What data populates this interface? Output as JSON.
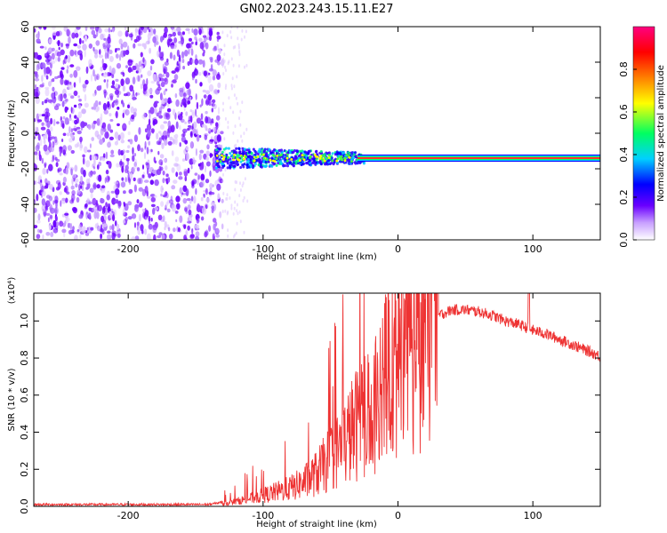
{
  "title": "GN02.2023.243.15.11.E27",
  "chart_data": [
    {
      "type": "heatmap",
      "xlabel": "Height of straight line (km)",
      "ylabel": "Frequency (Hz)",
      "xlim": [
        -270,
        150
      ],
      "ylim": [
        -60,
        60
      ],
      "xticks": [
        -200,
        -100,
        0,
        100
      ],
      "yticks": [
        -60,
        -40,
        -20,
        0,
        20,
        40,
        60
      ],
      "colorbar": {
        "label": "Normalized spectral amplitude",
        "range": [
          0,
          1
        ],
        "ticks": [
          "0.0",
          "0.2",
          "0.4",
          "0.6",
          "0.8"
        ],
        "colors": [
          "#ffffff",
          "#c8a0ff",
          "#6a00ff",
          "#0000ff",
          "#00d0ff",
          "#00ff60",
          "#ffff00",
          "#ff8000",
          "#ff0000",
          "#ff0080"
        ]
      },
      "line_frequency": -14,
      "noise_region": [
        -270,
        -130
      ]
    },
    {
      "type": "line",
      "xlabel": "Height of straight line (km)",
      "ylabel": "SNR (10 * v/v)",
      "y_multiplier": "(x10⁴)",
      "xlim": [
        -270,
        150
      ],
      "ylim": [
        0,
        1.15
      ],
      "xticks": [
        -200,
        -100,
        0,
        100
      ],
      "yticks": [
        "0.0",
        "0.2",
        "0.4",
        "0.6",
        "0.8",
        "1.0"
      ],
      "series": [
        {
          "color": "#ee3333",
          "x": [
            -270,
            -200,
            -140,
            -125,
            -110,
            -100,
            -90,
            -80,
            -70,
            -60,
            -50,
            -40,
            -30,
            -20,
            -10,
            0,
            10,
            20,
            30,
            40,
            50,
            60,
            70,
            80,
            90,
            100,
            110,
            120,
            130,
            140,
            150
          ],
          "y": [
            0.01,
            0.01,
            0.01,
            0.03,
            0.06,
            0.08,
            0.1,
            0.12,
            0.15,
            0.2,
            0.28,
            0.35,
            0.45,
            0.55,
            0.65,
            0.75,
            0.85,
            0.95,
            1.03,
            1.06,
            1.06,
            1.05,
            1.03,
            1.0,
            0.98,
            0.95,
            0.93,
            0.9,
            0.87,
            0.84,
            0.81
          ]
        }
      ]
    }
  ]
}
